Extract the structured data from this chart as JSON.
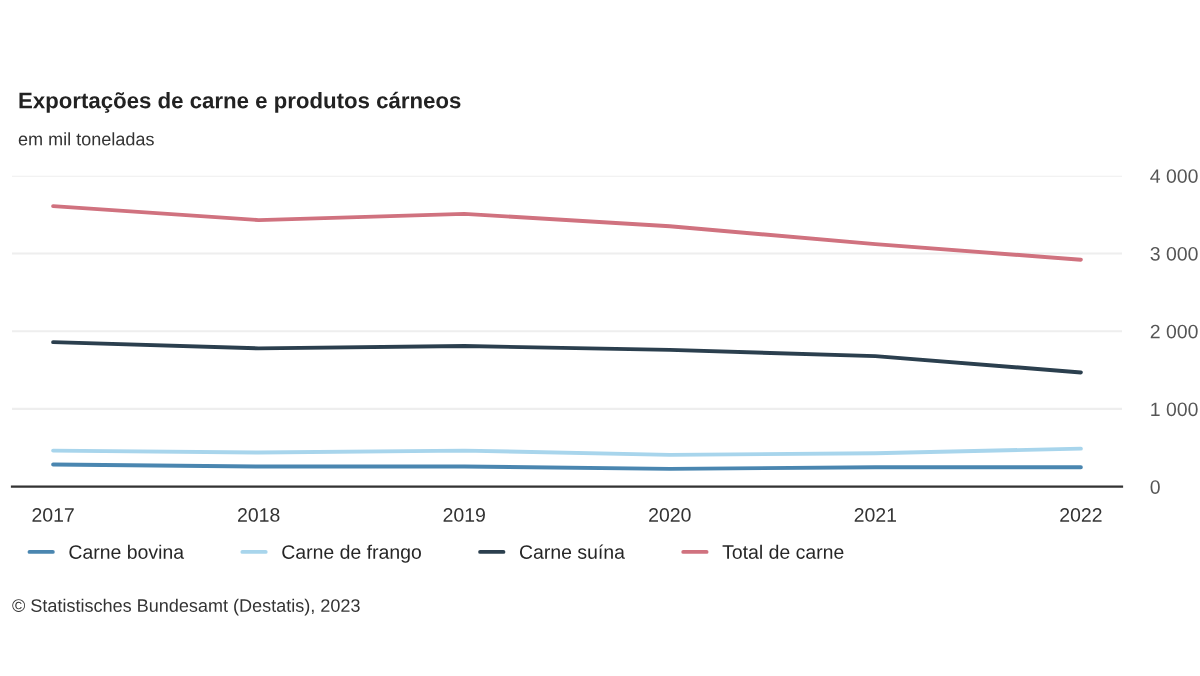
{
  "chart_data": {
    "type": "line",
    "title": "Exportações de carne e produtos cárneos",
    "subtitle": "em mil toneladas",
    "categories": [
      "2017",
      "2018",
      "2019",
      "2020",
      "2021",
      "2022"
    ],
    "series": [
      {
        "name": "Carne bovina",
        "color": "#4a86b0",
        "values": [
          285,
          260,
          260,
          230,
          250,
          250
        ]
      },
      {
        "name": "Carne de frango",
        "color": "#a8d5ec",
        "values": [
          465,
          440,
          465,
          410,
          430,
          490
        ]
      },
      {
        "name": "Carne suína",
        "color": "#2b3f4e",
        "values": [
          1860,
          1780,
          1810,
          1760,
          1680,
          1470
        ]
      },
      {
        "name": "Total de carne",
        "color": "#d0727f",
        "values": [
          3610,
          3430,
          3510,
          3350,
          3120,
          2920
        ]
      }
    ],
    "ylim": [
      0,
      4000
    ],
    "yticks": [
      {
        "value": 0,
        "label": "0"
      },
      {
        "value": 1000,
        "label": "1 000"
      },
      {
        "value": 2000,
        "label": "2 000"
      },
      {
        "value": 3000,
        "label": "3 000"
      },
      {
        "value": 4000,
        "label": "4 000"
      }
    ],
    "grid": "y",
    "legend": "bottom left",
    "marker": "none",
    "line_style": "solid",
    "annotations": [
      "© Statistisches Bundesamt (Destatis), 2023"
    ]
  }
}
